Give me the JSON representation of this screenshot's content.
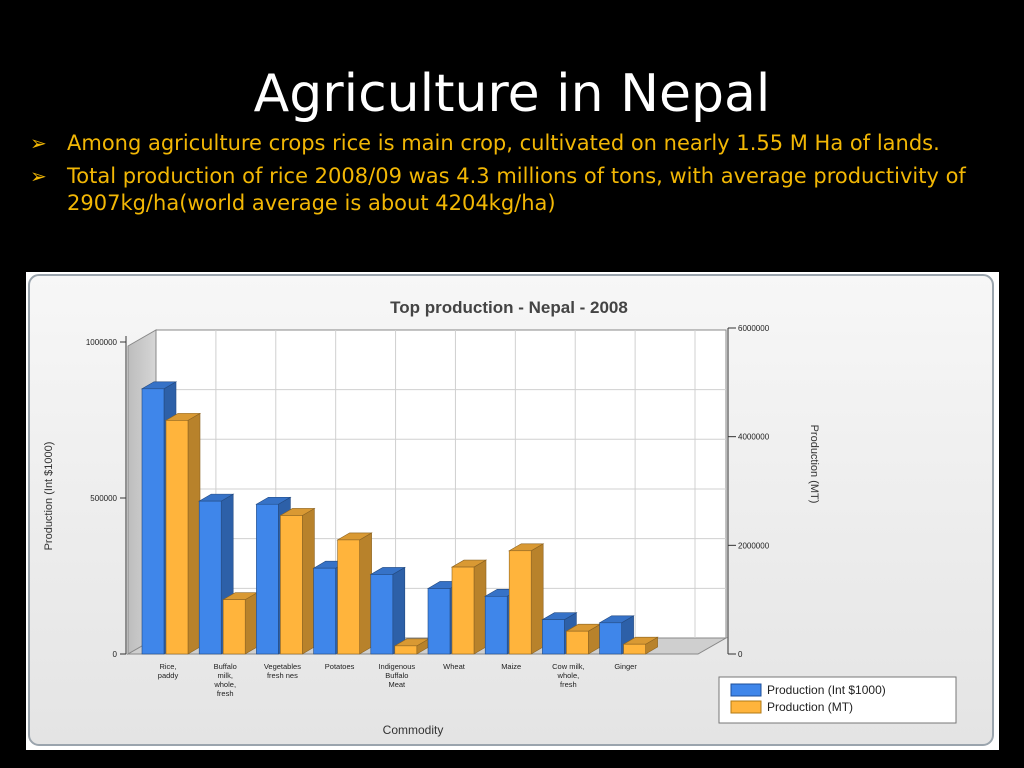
{
  "slide": {
    "title": "Agriculture in Nepal",
    "bullets": [
      {
        "marker": "➢",
        "text": "Among agriculture crops rice  is main crop, cultivated on nearly 1.55 M Ha of lands."
      },
      {
        "marker": "➢",
        "text": "Total production of rice 2008/09 was 4.3 millions of tons, with average productivity of 2907kg/ha(world average is about 4204kg/ha)"
      }
    ]
  },
  "colors": {
    "background": "#000000",
    "title": "#ffffff",
    "bullet_text": "#f2b705",
    "series1": "#3f86ea",
    "series2": "#ffb43c"
  },
  "chart_data": {
    "type": "bar",
    "title": "Top production - Nepal - 2008",
    "xlabel": "Commodity",
    "ylabel": "Production (Int $1000)",
    "y2label": "Production (MT)",
    "categories": [
      [
        "Rice,",
        "paddy"
      ],
      [
        "Buffalo",
        "milk,",
        "whole,",
        "fresh"
      ],
      [
        "Vegetables",
        "fresh nes"
      ],
      [
        "Potatoes"
      ],
      [
        "Indigenous",
        "Buffalo",
        "Meat"
      ],
      [
        "Wheat"
      ],
      [
        "Maize"
      ],
      [
        "Cow milk,",
        "whole,",
        "fresh"
      ],
      [
        "Ginger"
      ]
    ],
    "ylim": [
      0,
      1000000
    ],
    "y2lim": [
      0,
      6000000
    ],
    "yticks": [
      "0",
      "500000",
      "1000000"
    ],
    "y2ticks": [
      "0",
      "2000000",
      "4000000",
      "6000000"
    ],
    "series": [
      {
        "name": "Production (Int $1000)",
        "axis": "left",
        "values": [
          850000,
          490000,
          480000,
          275000,
          255000,
          210000,
          185000,
          110000,
          100000
        ]
      },
      {
        "name": "Production (MT)",
        "axis": "right",
        "values": [
          4300000,
          1000000,
          2550000,
          2100000,
          150000,
          1600000,
          1900000,
          420000,
          180000
        ]
      }
    ],
    "legend_position": "bottom-right",
    "grid": true
  }
}
